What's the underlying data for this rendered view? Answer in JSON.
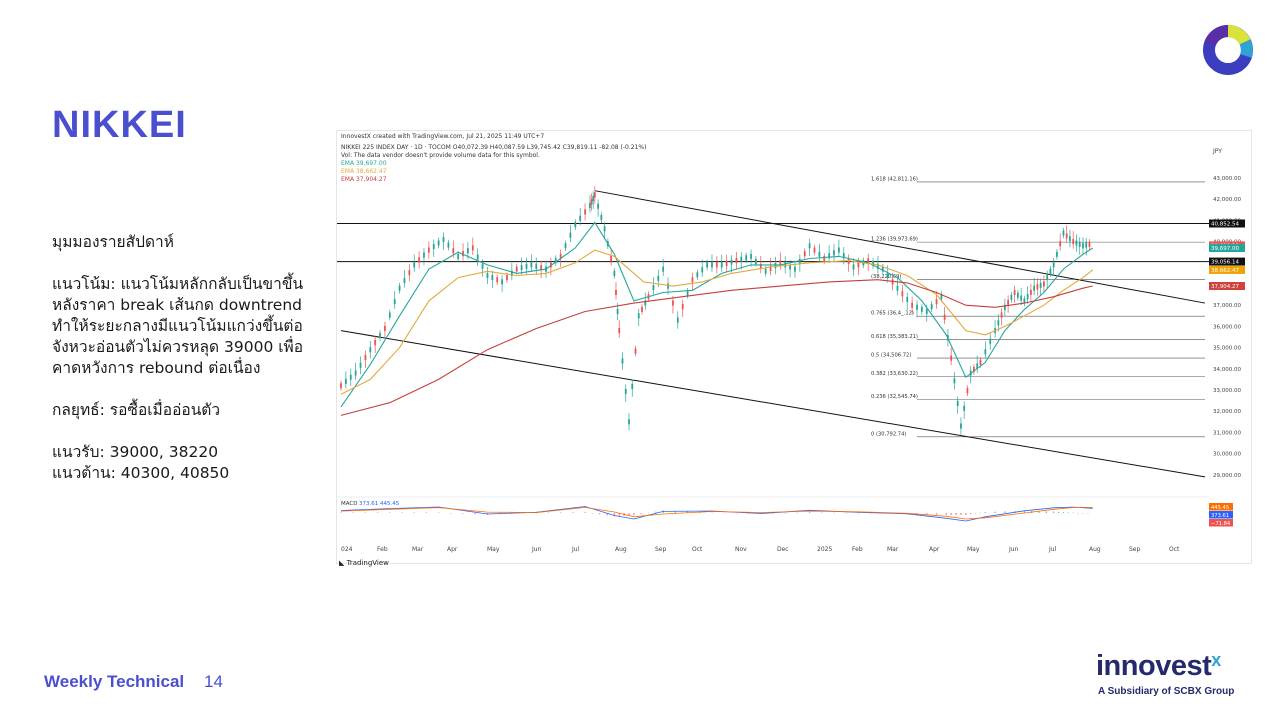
{
  "slide": {
    "title": "NIKKEI",
    "footer_label": "Weekly Technical",
    "page_number": "14",
    "brand_name": "innovest",
    "brand_x": "x",
    "brand_tagline": "A Subsidiary of SCBX Group"
  },
  "commentary": {
    "heading": "มุมมองรายสัปดาห์",
    "trend": "แนวโน้ม: แนวโน้มหลักกลับเป็นขาขึ้น หลังราคา break เส้นกด downtrend ทำให้ระยะกลางมีแนวโน้มแกว่งขึ้นต่อ จังหวะอ่อนตัวไม่ควรหลุด 39000 เพื่อคาดหวังการ rebound ต่อเนื่อง",
    "strategy": "กลยุทธ์: รอซื้อเมื่ออ่อนตัว",
    "support": "แนวรับ: 39000, 38220",
    "resistance": "แนวต้าน: 40300, 40850"
  },
  "chart_header": {
    "created": "InnovestX created with TradingView.com, Jul 21, 2025 11:49 UTC+7",
    "symbol": "NIKKEI 225 INDEX DAY · 1D · TOCOM  O40,072.39  H40,087.59  L39,745.42  C39,819.11  -82.08 (-0.21%)",
    "vol_note": "Vol: The data vendor doesn't provide volume data for this symbol.",
    "ema1": "EMA  39,697.00",
    "ema2": "EMA  38,662.47",
    "ema3": "EMA  37,904.27",
    "currency": "JPY",
    "macd_label": "MACD",
    "macd_values": "373.61  445.45",
    "tv_mark": "TradingView"
  },
  "chart_data": {
    "type": "line",
    "title": "NIKKEI 225 INDEX DAY · 1D · TOCOM",
    "ylabel": "JPY",
    "x_ticks": [
      "024",
      "Feb",
      "Mar",
      "Apr",
      "May",
      "Jun",
      "Jul",
      "Aug",
      "Sep",
      "Oct",
      "Nov",
      "Dec",
      "2025",
      "Feb",
      "Mar",
      "Apr",
      "May",
      "Jun",
      "Jul",
      "Aug",
      "Sep",
      "Oct"
    ],
    "y_ticks": [
      "43,000.00",
      "42,000.00",
      "41,000.00",
      "40,000.00",
      "39,000.00",
      "38,000.00",
      "37,000.00",
      "36,000.00",
      "35,000.00",
      "34,000.00",
      "33,000.00",
      "32,000.00",
      "31,000.00",
      "30,000.00",
      "29,000.00"
    ],
    "ylim": [
      28000,
      43800
    ],
    "series": [
      {
        "name": "NIKKEI 225",
        "color": "#26a69a",
        "points": [
          [
            0,
            33200
          ],
          [
            3,
            33800
          ],
          [
            6,
            34900
          ],
          [
            9,
            35900
          ],
          [
            12,
            37800
          ],
          [
            15,
            38900
          ],
          [
            18,
            39600
          ],
          [
            21,
            40100
          ],
          [
            24,
            39300
          ],
          [
            27,
            39700
          ],
          [
            30,
            38400
          ],
          [
            33,
            38100
          ],
          [
            36,
            38700
          ],
          [
            39,
            38900
          ],
          [
            42,
            38700
          ],
          [
            45,
            39300
          ],
          [
            48,
            40800
          ],
          [
            51,
            41700
          ],
          [
            52,
            42200
          ],
          [
            54,
            40600
          ],
          [
            56,
            38500
          ],
          [
            57,
            35800
          ],
          [
            59,
            31500
          ],
          [
            61,
            36500
          ],
          [
            63,
            37400
          ],
          [
            66,
            38700
          ],
          [
            69,
            36300
          ],
          [
            72,
            38200
          ],
          [
            75,
            38900
          ],
          [
            78,
            38900
          ],
          [
            81,
            39100
          ],
          [
            84,
            39300
          ],
          [
            87,
            38600
          ],
          [
            90,
            39000
          ],
          [
            93,
            38700
          ],
          [
            96,
            39800
          ],
          [
            99,
            39200
          ],
          [
            102,
            39600
          ],
          [
            105,
            38800
          ],
          [
            108,
            39100
          ],
          [
            111,
            38700
          ],
          [
            114,
            37800
          ],
          [
            117,
            37000
          ],
          [
            120,
            36700
          ],
          [
            123,
            37400
          ],
          [
            125,
            34500
          ],
          [
            127,
            31300
          ],
          [
            129,
            33800
          ],
          [
            131,
            34300
          ],
          [
            134,
            35800
          ],
          [
            136,
            36900
          ],
          [
            138,
            37600
          ],
          [
            140,
            37200
          ],
          [
            142,
            37800
          ],
          [
            144,
            38000
          ],
          [
            146,
            38900
          ],
          [
            148,
            40400
          ],
          [
            150,
            40000
          ],
          [
            152,
            39800
          ],
          [
            154,
            39900
          ]
        ]
      },
      {
        "name": "EMA",
        "color": "#26a69a",
        "points": [
          [
            0,
            32200
          ],
          [
            6,
            34200
          ],
          [
            12,
            36500
          ],
          [
            18,
            38700
          ],
          [
            24,
            39500
          ],
          [
            30,
            38900
          ],
          [
            36,
            38500
          ],
          [
            42,
            38700
          ],
          [
            48,
            39700
          ],
          [
            52,
            40900
          ],
          [
            56,
            39400
          ],
          [
            60,
            37200
          ],
          [
            66,
            37600
          ],
          [
            72,
            37700
          ],
          [
            78,
            38500
          ],
          [
            84,
            38900
          ],
          [
            90,
            38900
          ],
          [
            96,
            39200
          ],
          [
            102,
            39300
          ],
          [
            108,
            39000
          ],
          [
            114,
            38300
          ],
          [
            119,
            37200
          ],
          [
            124,
            35600
          ],
          [
            128,
            33600
          ],
          [
            132,
            34300
          ],
          [
            136,
            35800
          ],
          [
            140,
            36800
          ],
          [
            144,
            37600
          ],
          [
            148,
            38700
          ],
          [
            152,
            39400
          ],
          [
            154,
            39697
          ]
        ]
      },
      {
        "name": "EMA",
        "color": "#e3a93b",
        "points": [
          [
            0,
            32800
          ],
          [
            6,
            33500
          ],
          [
            12,
            35000
          ],
          [
            18,
            37200
          ],
          [
            24,
            38300
          ],
          [
            30,
            38600
          ],
          [
            36,
            38400
          ],
          [
            42,
            38500
          ],
          [
            48,
            39000
          ],
          [
            52,
            39600
          ],
          [
            56,
            39300
          ],
          [
            62,
            38100
          ],
          [
            68,
            37900
          ],
          [
            74,
            38100
          ],
          [
            80,
            38500
          ],
          [
            88,
            38800
          ],
          [
            96,
            39000
          ],
          [
            104,
            39100
          ],
          [
            110,
            38900
          ],
          [
            116,
            38400
          ],
          [
            122,
            37500
          ],
          [
            128,
            35800
          ],
          [
            132,
            35600
          ],
          [
            136,
            36000
          ],
          [
            140,
            36500
          ],
          [
            144,
            37000
          ],
          [
            148,
            37700
          ],
          [
            152,
            38300
          ],
          [
            154,
            38662
          ]
        ]
      },
      {
        "name": "EMA",
        "color": "#c4403a",
        "points": [
          [
            0,
            31800
          ],
          [
            10,
            32400
          ],
          [
            20,
            33500
          ],
          [
            30,
            34900
          ],
          [
            40,
            35900
          ],
          [
            50,
            36700
          ],
          [
            60,
            37100
          ],
          [
            70,
            37400
          ],
          [
            80,
            37700
          ],
          [
            90,
            37900
          ],
          [
            100,
            38100
          ],
          [
            110,
            38200
          ],
          [
            116,
            38050
          ],
          [
            122,
            37600
          ],
          [
            128,
            37000
          ],
          [
            134,
            36900
          ],
          [
            140,
            37100
          ],
          [
            146,
            37400
          ],
          [
            152,
            37800
          ],
          [
            154,
            37904
          ]
        ]
      },
      {
        "name": "MACD",
        "color": "#2962ff",
        "points": [
          [
            0,
            200
          ],
          [
            10,
            350
          ],
          [
            20,
            480
          ],
          [
            30,
            -80
          ],
          [
            40,
            60
          ],
          [
            50,
            520
          ],
          [
            56,
            -200
          ],
          [
            60,
            -480
          ],
          [
            66,
            130
          ],
          [
            76,
            160
          ],
          [
            86,
            -40
          ],
          [
            96,
            220
          ],
          [
            106,
            60
          ],
          [
            116,
            -60
          ],
          [
            124,
            -420
          ],
          [
            128,
            -640
          ],
          [
            132,
            -300
          ],
          [
            140,
            180
          ],
          [
            146,
            420
          ],
          [
            150,
            470
          ],
          [
            154,
            374
          ]
        ]
      },
      {
        "name": "Signal",
        "color": "#ff6d00",
        "points": [
          [
            0,
            150
          ],
          [
            10,
            300
          ],
          [
            20,
            430
          ],
          [
            30,
            70
          ],
          [
            40,
            30
          ],
          [
            50,
            450
          ],
          [
            56,
            80
          ],
          [
            60,
            -300
          ],
          [
            66,
            -80
          ],
          [
            76,
            120
          ],
          [
            86,
            40
          ],
          [
            96,
            150
          ],
          [
            106,
            100
          ],
          [
            116,
            -20
          ],
          [
            124,
            -260
          ],
          [
            128,
            -480
          ],
          [
            132,
            -380
          ],
          [
            140,
            0
          ],
          [
            146,
            300
          ],
          [
            150,
            440
          ],
          [
            154,
            445
          ]
        ]
      }
    ],
    "fibonacci": [
      {
        "label": "1.618 (42,811.16)",
        "value": 42811.16
      },
      {
        "label": "1.236 (39,973.69)",
        "value": 39973.69
      },
      {
        "label": "(38,220.69)",
        "value": 38220.69
      },
      {
        "label": "0.765 (36,4_.12)",
        "value": 36480
      },
      {
        "label": "0.618 (35,383.21)",
        "value": 35383.21
      },
      {
        "label": "0.5 (34,506.72)",
        "value": 34506.72
      },
      {
        "label": "0.382 (33,630.22)",
        "value": 33630.22
      },
      {
        "label": "0.236 (32,545.74)",
        "value": 32545.74
      },
      {
        "label": "0 (30,792.74)",
        "value": 30792.74
      }
    ],
    "horizontal_lines": [
      {
        "label": "40,852.54",
        "value": 40852.54
      },
      {
        "label": "39,056.14",
        "value": 39056.14
      }
    ],
    "trendlines": [
      {
        "from": [
          52,
          42400
        ],
        "to": [
          177,
          37100
        ]
      },
      {
        "from": [
          0,
          35800
        ],
        "to": [
          177,
          28900
        ]
      }
    ],
    "price_labels": [
      {
        "text": "39,819.11",
        "value": 39819.11,
        "color": "#ef5350"
      },
      {
        "text": "39,697.00",
        "value": 39697.0,
        "color": "#26a69a"
      },
      {
        "text": "38,662.47",
        "value": 38662.47,
        "color": "#f0a202"
      },
      {
        "text": "37,904.27",
        "value": 37904.27,
        "color": "#d0433c"
      }
    ],
    "macd_labels": [
      {
        "text": "445.45",
        "color": "#ff6d00"
      },
      {
        "text": "373.61",
        "color": "#2962ff"
      },
      {
        "text": "−71.84",
        "color": "#ef5350"
      }
    ]
  }
}
